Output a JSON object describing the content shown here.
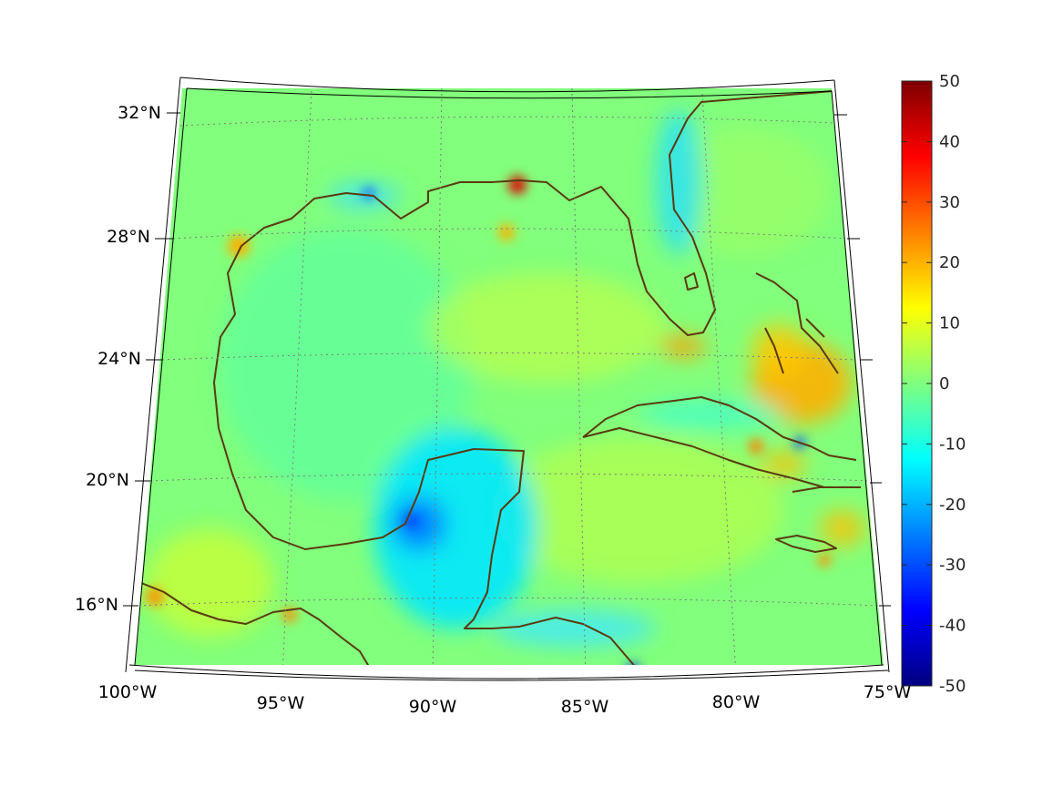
{
  "map": {
    "lat_labels": [
      "32°N",
      "28°N",
      "24°N",
      "20°N",
      "16°N"
    ],
    "lon_labels": [
      "100°W",
      "95°W",
      "90°W",
      "85°W",
      "80°W",
      "75°W"
    ],
    "extent": {
      "lon_min": -100,
      "lon_max": -75,
      "lat_min": 14,
      "lat_max": 33
    },
    "gridlines": true,
    "gridline_style": "dotted",
    "coastline_color": "#5a3a10",
    "land_mask": false
  },
  "colorbar": {
    "colormap": "jet",
    "min": -50,
    "max": 50,
    "tick_labels": [
      "50",
      "40",
      "30",
      "20",
      "10",
      "0",
      "-10",
      "-20",
      "-30",
      "-40",
      "-50"
    ],
    "placement": "right"
  },
  "colors": {
    "background_field": "#7fff80",
    "coastline": "#5a3a10",
    "gridline": "#7a7a7a"
  }
}
